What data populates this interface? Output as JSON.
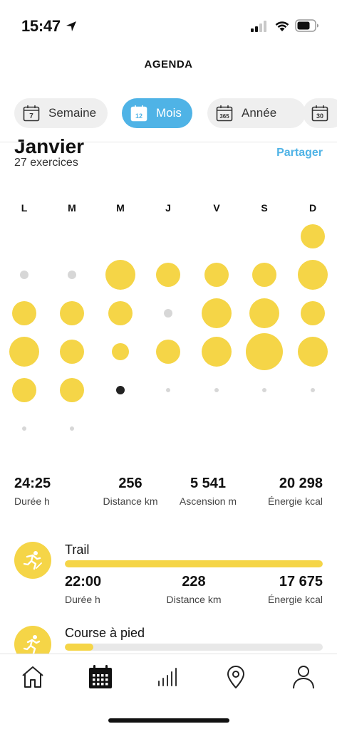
{
  "status_bar": {
    "time": "15:47"
  },
  "header": {
    "title": "AGENDA"
  },
  "tabs": [
    {
      "label": "Semaine",
      "icon_number": "7",
      "active": false
    },
    {
      "label": "Mois",
      "icon_number": "12",
      "active": true
    },
    {
      "label": "Année",
      "icon_number": "365",
      "active": false
    },
    {
      "label": "",
      "icon_number": "30",
      "active": false
    }
  ],
  "month": {
    "name": "Janvier",
    "subtitle": "27 exercices",
    "share_label": "Partager"
  },
  "weekdays": [
    "L",
    "M",
    "M",
    "J",
    "V",
    "S",
    "D"
  ],
  "calendar_days": [
    {
      "row": 0,
      "col": 6,
      "size": "medium",
      "selected": false
    },
    {
      "row": 1,
      "col": 0,
      "size": "none",
      "selected": false
    },
    {
      "row": 1,
      "col": 1,
      "size": "none",
      "selected": false
    },
    {
      "row": 1,
      "col": 2,
      "size": "large",
      "selected": false
    },
    {
      "row": 1,
      "col": 3,
      "size": "medium",
      "selected": false
    },
    {
      "row": 1,
      "col": 4,
      "size": "medium",
      "selected": false
    },
    {
      "row": 1,
      "col": 5,
      "size": "medium",
      "selected": false
    },
    {
      "row": 1,
      "col": 6,
      "size": "large",
      "selected": false
    },
    {
      "row": 2,
      "col": 0,
      "size": "medium",
      "selected": false
    },
    {
      "row": 2,
      "col": 1,
      "size": "medium",
      "selected": false
    },
    {
      "row": 2,
      "col": 2,
      "size": "medium",
      "selected": false
    },
    {
      "row": 2,
      "col": 3,
      "size": "none",
      "selected": false
    },
    {
      "row": 2,
      "col": 4,
      "size": "large",
      "selected": false
    },
    {
      "row": 2,
      "col": 5,
      "size": "large",
      "selected": false
    },
    {
      "row": 2,
      "col": 6,
      "size": "medium",
      "selected": false
    },
    {
      "row": 3,
      "col": 0,
      "size": "large",
      "selected": false
    },
    {
      "row": 3,
      "col": 1,
      "size": "medium",
      "selected": false
    },
    {
      "row": 3,
      "col": 2,
      "size": "small",
      "selected": false
    },
    {
      "row": 3,
      "col": 3,
      "size": "medium",
      "selected": false
    },
    {
      "row": 3,
      "col": 4,
      "size": "large",
      "selected": false
    },
    {
      "row": 3,
      "col": 5,
      "size": "xlarge",
      "selected": false
    },
    {
      "row": 3,
      "col": 6,
      "size": "large",
      "selected": false
    },
    {
      "row": 4,
      "col": 0,
      "size": "medium",
      "selected": false
    },
    {
      "row": 4,
      "col": 1,
      "size": "medium",
      "selected": false
    },
    {
      "row": 4,
      "col": 2,
      "size": "today",
      "selected": true
    },
    {
      "row": 4,
      "col": 3,
      "size": "future",
      "selected": false
    },
    {
      "row": 4,
      "col": 4,
      "size": "future",
      "selected": false
    },
    {
      "row": 4,
      "col": 5,
      "size": "future",
      "selected": false
    },
    {
      "row": 4,
      "col": 6,
      "size": "future",
      "selected": false
    },
    {
      "row": 5,
      "col": 0,
      "size": "future",
      "selected": false
    },
    {
      "row": 5,
      "col": 1,
      "size": "future",
      "selected": false
    }
  ],
  "summary": [
    {
      "value": "24:25",
      "label": "Durée h"
    },
    {
      "value": "256",
      "label": "Distance km"
    },
    {
      "value": "5 541",
      "label": "Ascension m"
    },
    {
      "value": "20 298",
      "label": "Énergie kcal"
    }
  ],
  "activities": [
    {
      "name": "Trail",
      "progress": 1.0,
      "icon": "trail-running-icon",
      "stats": [
        {
          "value": "22:00",
          "label": "Durée h"
        },
        {
          "value": "228",
          "label": "Distance km"
        },
        {
          "value": "17 675",
          "label": "Énergie kcal"
        }
      ]
    },
    {
      "name": "Course à pied",
      "progress": 0.11,
      "icon": "running-icon"
    }
  ],
  "colors": {
    "accent_yellow": "#f5d547",
    "accent_blue": "#4fb3e6",
    "empty_dot": "#d7d7d7",
    "today_dot": "#222222"
  },
  "bottom_nav": [
    {
      "icon": "home-icon",
      "active": false
    },
    {
      "icon": "calendar-icon",
      "active": true
    },
    {
      "icon": "bar-chart-icon",
      "active": false
    },
    {
      "icon": "map-pin-icon",
      "active": false
    },
    {
      "icon": "profile-icon",
      "active": false
    }
  ]
}
